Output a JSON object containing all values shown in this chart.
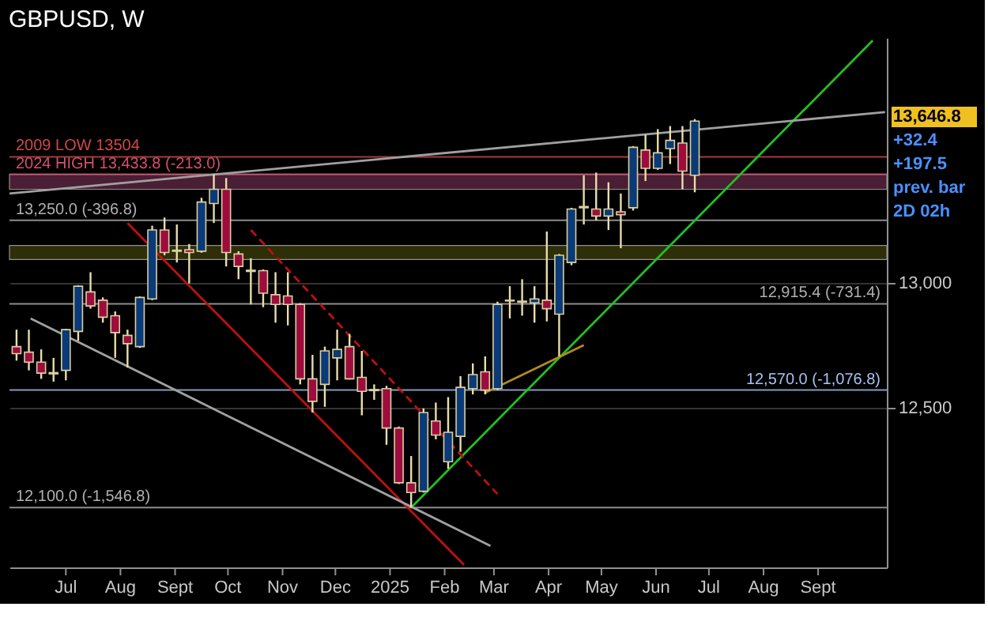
{
  "chart_data": {
    "type": "candlestick",
    "title": "GBPUSD, W",
    "x": [
      "2024-06-03",
      "2024-06-10",
      "2024-06-17",
      "2024-06-24",
      "2024-07-01",
      "2024-07-08",
      "2024-07-15",
      "2024-07-22",
      "2024-07-29",
      "2024-08-05",
      "2024-08-12",
      "2024-08-19",
      "2024-08-26",
      "2024-09-02",
      "2024-09-09",
      "2024-09-16",
      "2024-09-23",
      "2024-09-30",
      "2024-10-07",
      "2024-10-14",
      "2024-10-21",
      "2024-10-28",
      "2024-11-04",
      "2024-11-11",
      "2024-11-18",
      "2024-11-25",
      "2024-12-02",
      "2024-12-09",
      "2024-12-16",
      "2024-12-23",
      "2024-12-30",
      "2025-01-06",
      "2025-01-13",
      "2025-01-20",
      "2025-01-27",
      "2025-02-03",
      "2025-02-10",
      "2025-02-17",
      "2025-02-24",
      "2025-03-03",
      "2025-03-10",
      "2025-03-17",
      "2025-03-24",
      "2025-03-31",
      "2025-04-07",
      "2025-04-14",
      "2025-04-21",
      "2025-04-28",
      "2025-05-05",
      "2025-05-12",
      "2025-05-19",
      "2025-05-26",
      "2025-06-02",
      "2025-06-09",
      "2025-06-16",
      "2025-06-23"
    ],
    "ohlc": [
      [
        12744,
        12812,
        12688,
        12716
      ],
      [
        12722,
        12812,
        12649,
        12682
      ],
      [
        12682,
        12733,
        12615,
        12638
      ],
      [
        12640,
        12699,
        12604,
        12635
      ],
      [
        12649,
        12815,
        12609,
        12812
      ],
      [
        12805,
        12990,
        12767,
        12986
      ],
      [
        12963,
        13042,
        12896,
        12907
      ],
      [
        12930,
        12941,
        12840,
        12862
      ],
      [
        12868,
        12885,
        12699,
        12800
      ],
      [
        12789,
        12812,
        12660,
        12756
      ],
      [
        12744,
        12945,
        12739,
        12941
      ],
      [
        12935,
        13228,
        12930,
        13211
      ],
      [
        13211,
        13261,
        13110,
        13121
      ],
      [
        13130,
        13233,
        13081,
        13126
      ],
      [
        13132,
        13155,
        12997,
        13121
      ],
      [
        13126,
        13340,
        13120,
        13323
      ],
      [
        13317,
        13434,
        13239,
        13374
      ],
      [
        13374,
        13419,
        13065,
        13121
      ],
      [
        13115,
        13126,
        13014,
        13065
      ],
      [
        13050,
        13098,
        12913,
        13045
      ],
      [
        13048,
        13053,
        12902,
        12958
      ],
      [
        12952,
        13042,
        12840,
        12913
      ],
      [
        12947,
        13042,
        12829,
        12913
      ],
      [
        12913,
        12918,
        12593,
        12615
      ],
      [
        12615,
        12711,
        12480,
        12525
      ],
      [
        12593,
        12744,
        12503,
        12727
      ],
      [
        12699,
        12812,
        12609,
        12733
      ],
      [
        12744,
        12795,
        12612,
        12615
      ],
      [
        12621,
        12727,
        12469,
        12565
      ],
      [
        12572,
        12593,
        12531,
        12568
      ],
      [
        12576,
        12587,
        12351,
        12418
      ],
      [
        12418,
        12424,
        12194,
        12199
      ],
      [
        12199,
        12306,
        12100,
        12160
      ],
      [
        12165,
        12497,
        12160,
        12480
      ],
      [
        12446,
        12520,
        12373,
        12390
      ],
      [
        12283,
        12542,
        12255,
        12401
      ],
      [
        12385,
        12626,
        12323,
        12581
      ],
      [
        12576,
        12677,
        12553,
        12632
      ],
      [
        12643,
        12705,
        12553,
        12570
      ],
      [
        12576,
        12924,
        12570,
        12913
      ],
      [
        12930,
        12986,
        12857,
        12927
      ],
      [
        12926,
        13014,
        12868,
        12922
      ],
      [
        12919,
        12986,
        12840,
        12935
      ],
      [
        12930,
        13205,
        12845,
        12896
      ],
      [
        12874,
        13115,
        12705,
        13110
      ],
      [
        13081,
        13300,
        13070,
        13295
      ],
      [
        13305,
        13430,
        13233,
        13300
      ],
      [
        13295,
        13441,
        13250,
        13267
      ],
      [
        13267,
        13402,
        13211,
        13295
      ],
      [
        13284,
        13357,
        13138,
        13272
      ],
      [
        13300,
        13547,
        13289,
        13542
      ],
      [
        13531,
        13593,
        13407,
        13458
      ],
      [
        13458,
        13615,
        13452,
        13520
      ],
      [
        13537,
        13627,
        13475,
        13570
      ],
      [
        13559,
        13627,
        13374,
        13447
      ],
      [
        13430,
        13655,
        13362,
        13646.8
      ]
    ],
    "colors": [
      "#9e0c3e",
      "#9e0c3e",
      "#9e0c3e",
      "#9e0c3e",
      "#0b3a78",
      "#0b3a78",
      "#9e0c3e",
      "#9e0c3e",
      "#9e0c3e",
      "#9e0c3e",
      "#0b3a78",
      "#0b3a78",
      "#9e0c3e",
      "#9e0c3e",
      "#9e0c3e",
      "#0b3a78",
      "#0b3a78",
      "#9e0c3e",
      "#9e0c3e",
      "#9e0c3e",
      "#9e0c3e",
      "#9e0c3e",
      "#9e0c3e",
      "#9e0c3e",
      "#9e0c3e",
      "#0b3a78",
      "#0b3a78",
      "#9e0c3e",
      "#9e0c3e",
      "#9e0c3e",
      "#9e0c3e",
      "#9e0c3e",
      "#9e0c3e",
      "#0b3a78",
      "#9e0c3e",
      "#0b3a78",
      "#0b3a78",
      "#0b3a78",
      "#9e0c3e",
      "#0b3a78",
      "#9e0c3e",
      "#9e0c3e",
      "#0b3a78",
      "#9e0c3e",
      "#0b3a78",
      "#0b3a78",
      "#9e0c3e",
      "#9e0c3e",
      "#0b3a78",
      "#9e0c3e",
      "#0b3a78",
      "#9e0c3e",
      "#0b3a78",
      "#0b3a78",
      "#9e0c3e",
      "#0b3a78"
    ],
    "series": [
      {
        "type": "line",
        "color": "#22c022",
        "x": [
          "2025-01-13",
          "2025-10-02"
        ],
        "values": [
          12100,
          13970
        ]
      },
      {
        "type": "line",
        "color": "#c01010",
        "x": [
          "2024-08-05",
          "2025-02-12"
        ],
        "values": [
          13239,
          11870
        ]
      },
      {
        "type": "line",
        "color": "#c01010",
        "line_style": "dashed",
        "x": [
          "2024-10-14",
          "2025-03-03"
        ],
        "values": [
          13211,
          12154
        ]
      },
      {
        "type": "line",
        "color": "#a0a0a0",
        "x": [
          "2024-05-30",
          "2025-10-09"
        ],
        "values": [
          13357,
          13683
        ]
      },
      {
        "type": "line",
        "color": "#a0a0a0",
        "x": [
          "2024-06-11",
          "2025-02-27"
        ],
        "values": [
          12857,
          11946
        ]
      },
      {
        "type": "line",
        "color": "#b08a20",
        "x": [
          "2025-02-24",
          "2025-04-21"
        ],
        "values": [
          12559,
          12750
        ]
      }
    ],
    "ref_lines": [
      {
        "axis": "y",
        "value": 13504,
        "label": "2009 LOW 13504",
        "color": "#d04848"
      },
      {
        "axis": "y",
        "value": 13433.8,
        "label": "2024 HIGH 13,433.8 (-213.0)",
        "color": "#d05070"
      },
      {
        "axis": "y",
        "value": 13250,
        "label": "13,250.0 (-396.8)",
        "color": "#b0b0b0"
      },
      {
        "axis": "y",
        "value": 12915.4,
        "label": "12,915.4 (-731.4)",
        "color": "#b0b0b0"
      },
      {
        "axis": "y",
        "value": 12570,
        "label": "12,570.0 (-1,076.8)",
        "color": "#a8c0f0"
      },
      {
        "axis": "y",
        "value": 12100,
        "label": "12,100.0 (-1,546.8)",
        "color": "#b0b0b0"
      }
    ],
    "bands": [
      {
        "axis": "y",
        "from": 13374,
        "to": 13433.8,
        "color": "#4a1e34"
      },
      {
        "axis": "y",
        "from": 13093,
        "to": 13149,
        "color": "#2e2e08"
      }
    ],
    "annotations": [
      "13,646.8",
      "+32.4",
      "+197.5",
      "prev. bar",
      "2D 02h"
    ],
    "xlim": [
      "2024-05-30",
      "2025-10-10"
    ],
    "xticks": [
      {
        "value": "2024-07-01",
        "label": "Jul"
      },
      {
        "value": "2024-08-01",
        "label": "Aug"
      },
      {
        "value": "2024-09-01",
        "label": "Sept"
      },
      {
        "value": "2024-10-01",
        "label": "Oct"
      },
      {
        "value": "2024-11-01",
        "label": "Nov"
      },
      {
        "value": "2024-12-01",
        "label": "Dec"
      },
      {
        "value": "2025-01-01",
        "label": "2025"
      },
      {
        "value": "2025-02-01",
        "label": "Feb"
      },
      {
        "value": "2025-03-01",
        "label": "Mar"
      },
      {
        "value": "2025-04-01",
        "label": "Apr"
      },
      {
        "value": "2025-05-01",
        "label": "May"
      },
      {
        "value": "2025-06-01",
        "label": "Jun"
      },
      {
        "value": "2025-07-01",
        "label": "Jul"
      },
      {
        "value": "2025-08-01",
        "label": "Aug"
      },
      {
        "value": "2025-09-01",
        "label": "Sept"
      }
    ],
    "ylim": [
      11860,
      13980
    ],
    "yticks": [
      {
        "value": 13000,
        "label": "13,000"
      },
      {
        "value": 12500,
        "label": "12,500"
      }
    ],
    "grid": "y"
  }
}
